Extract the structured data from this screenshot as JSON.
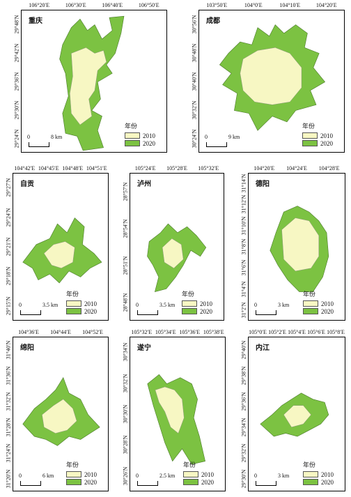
{
  "colors": {
    "c2010": "#f7f7c3",
    "c2020": "#7cc242",
    "outline": "#4a7a2a"
  },
  "legend": {
    "title": "年份",
    "y2010": "2010",
    "y2020": "2020"
  },
  "panels": [
    {
      "id": "chongqing",
      "name": "重庆",
      "lon_ticks": [
        "106°20′E",
        "106°30′E",
        "106°40′E",
        "106°50′E"
      ],
      "lat_ticks": [
        "29°48′N",
        "29°42′N",
        "29°36′N",
        "29°30′N",
        "29°24′N"
      ],
      "scale": "8 km"
    },
    {
      "id": "chengdu",
      "name": "成都",
      "lon_ticks": [
        "103°50′E",
        "104°0′E",
        "104°10′E",
        "104°20′E"
      ],
      "lat_ticks": [
        "30°56′N",
        "30°48′N",
        "30°40′N",
        "30°32′N",
        "30°24′N"
      ],
      "scale": "9 km"
    },
    {
      "id": "zigong",
      "name": "自贡",
      "lon_ticks": [
        "104°42′E",
        "104°45′E",
        "104°48′E",
        "104°51′E"
      ],
      "lat_ticks": [
        "29°27′N",
        "29°24′N",
        "29°21′N",
        "29°18′N",
        "29°15′N"
      ],
      "scale": "3.5 km"
    },
    {
      "id": "luzhou",
      "name": "泸州",
      "lon_ticks": [
        "105°24′E",
        "105°28′E",
        "105°32′E"
      ],
      "lat_ticks": [
        "28°57′N",
        "28°54′N",
        "28°51′N",
        "28°48′N"
      ],
      "scale": "3.5 km"
    },
    {
      "id": "deyang",
      "name": "德阳",
      "lon_ticks": [
        "104°20′E",
        "104°24′E",
        "104°28′E"
      ],
      "lat_ticks": [
        "31°14′N",
        "31°12′N",
        "31°10′N",
        "31°8′N",
        "31°6′N",
        "31°4′N",
        "31°2′N"
      ],
      "scale": "3 km"
    },
    {
      "id": "mianyang",
      "name": "绵阳",
      "lon_ticks": [
        "104°36′E",
        "104°44′E",
        "104°52′E"
      ],
      "lat_ticks": [
        "31°40′N",
        "31°36′N",
        "31°32′N",
        "31°28′N",
        "31°24′N",
        "31°20′N"
      ],
      "scale": "6 km"
    },
    {
      "id": "suining",
      "name": "遂宁",
      "lon_ticks": [
        "105°32′E",
        "105°34′E",
        "105°36′E",
        "105°38′E"
      ],
      "lat_ticks": [
        "30°34′N",
        "30°32′N",
        "30°30′N",
        "30°28′N",
        "30°26′N"
      ],
      "scale": "2.5 km"
    },
    {
      "id": "neijiang",
      "name": "内江",
      "lon_ticks": [
        "105°0′E",
        "105°2′E",
        "105°4′E",
        "105°6′E",
        "105°8′E"
      ],
      "lat_ticks": [
        "29°40′N",
        "29°38′N",
        "29°36′N",
        "29°34′N",
        "29°32′N",
        "29°30′N"
      ],
      "scale": "3 km"
    }
  ]
}
